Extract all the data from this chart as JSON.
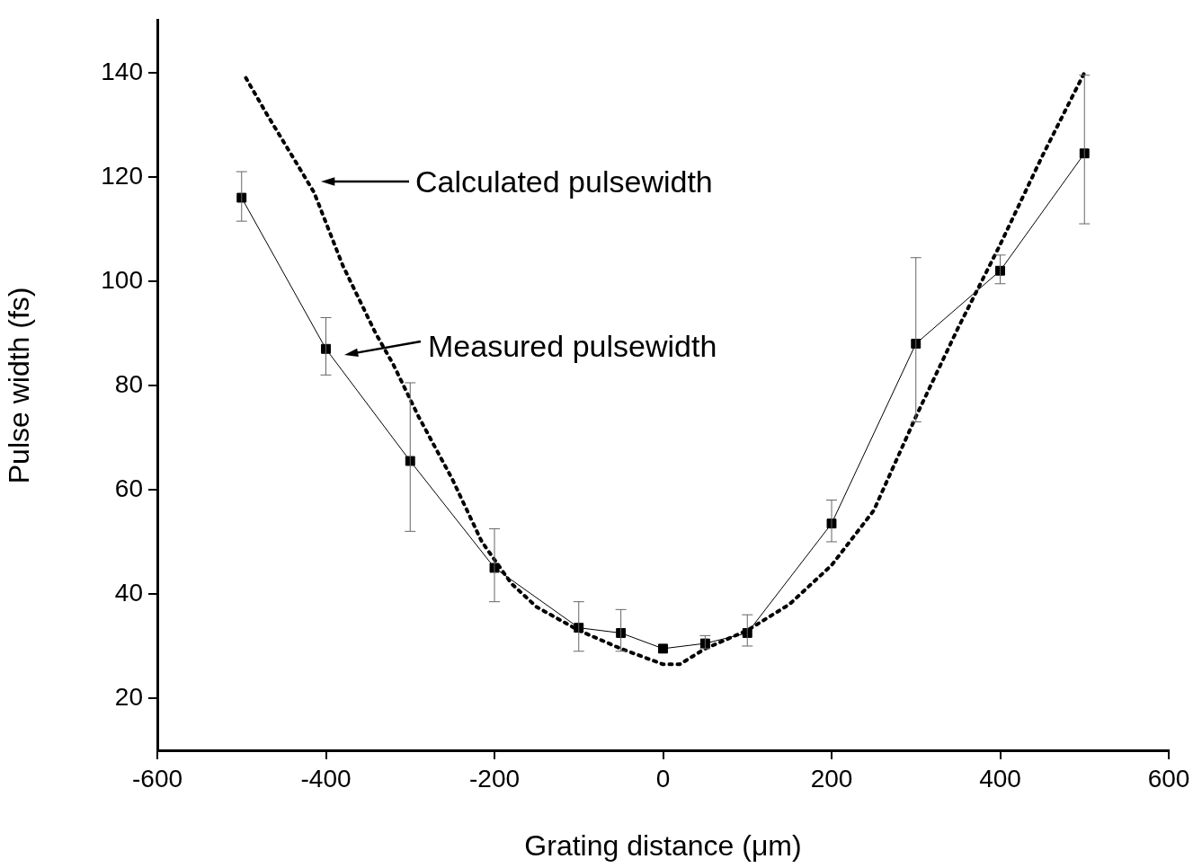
{
  "chart_data": {
    "type": "line",
    "xlabel": "Grating distance (μm)",
    "ylabel": "Pulse width (fs)",
    "xlim": [
      -600,
      600
    ],
    "xticks": [
      -600,
      -400,
      -200,
      0,
      200,
      400,
      600
    ],
    "ylim": [
      10,
      150
    ],
    "yticks": [
      20,
      40,
      60,
      80,
      100,
      120,
      140
    ],
    "grid": false,
    "legend": false,
    "series": [
      {
        "color": "#000000",
        "line_style": "dotted",
        "marker": "none",
        "x": [
          -495,
          -470,
          -440,
          -414,
          -380,
          -341,
          -320,
          -290,
          -250,
          -215,
          -180,
          -150,
          -100,
          -50,
          0,
          20,
          50,
          100,
          150,
          200,
          250,
          300,
          350,
          400,
          450,
          500
        ],
        "values": [
          139,
          132,
          124,
          117,
          103,
          90,
          84,
          74,
          62,
          50,
          42,
          37.5,
          33,
          29.5,
          26.5,
          26.5,
          29.5,
          33,
          38,
          45.5,
          56,
          74,
          91,
          107,
          124,
          140
        ]
      },
      {
        "color": "#000000",
        "line_style": "solid",
        "marker": "square",
        "x": [
          -500,
          -400,
          -300,
          -200,
          -100,
          -50,
          0,
          50,
          100,
          200,
          300,
          400,
          500
        ],
        "values": [
          116,
          87,
          65.5,
          45,
          33.5,
          32.5,
          29.5,
          30.5,
          32.5,
          53.5,
          88,
          102,
          124.5
        ],
        "errors": [
          [
            111.5,
            121
          ],
          [
            82,
            93
          ],
          [
            52,
            80.5
          ],
          [
            38.5,
            52.5
          ],
          [
            29,
            38.5
          ],
          [
            29,
            37
          ],
          null,
          [
            29.5,
            32
          ],
          [
            30,
            36
          ],
          [
            50,
            58
          ],
          [
            73,
            104.5
          ],
          [
            99.5,
            105
          ],
          [
            111,
            139.5
          ]
        ]
      }
    ],
    "annotations": [
      "Calculated pulsewidth",
      "Measured pulsewidth"
    ]
  }
}
